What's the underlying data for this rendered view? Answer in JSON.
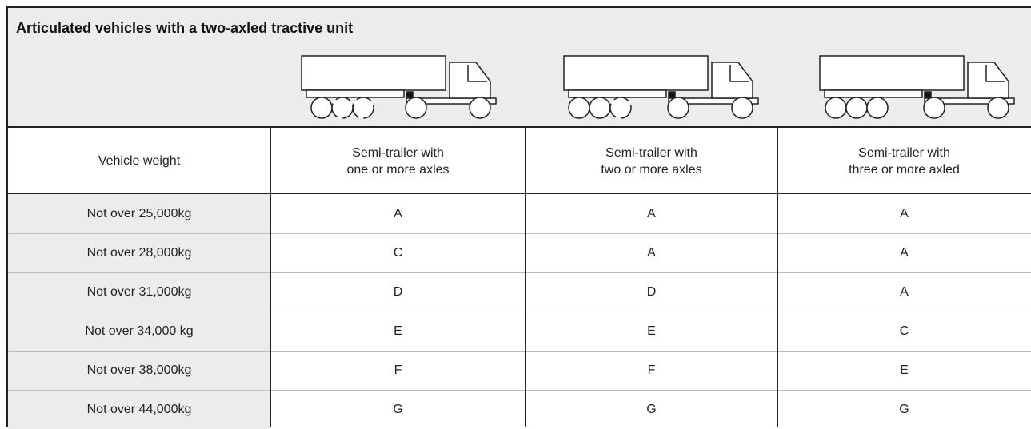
{
  "title": "Articulated vehicles with a two-axled tractive unit",
  "table": {
    "header": [
      [
        "Vehicle weight"
      ],
      [
        "Semi-trailer with",
        "one or more axles"
      ],
      [
        "Semi-trailer with",
        "two or more axles"
      ],
      [
        "Semi-trailer with",
        "three or more axled"
      ]
    ],
    "rows": [
      [
        "Not over 25,000kg",
        "A",
        "A",
        "A"
      ],
      [
        "Not over 28,000kg",
        "C",
        "A",
        "A"
      ],
      [
        "Not over 31,000kg",
        "D",
        "D",
        "A"
      ],
      [
        "Not over 34,000 kg",
        "E",
        "E",
        "C"
      ],
      [
        "Not over 38,000kg",
        "F",
        "F",
        "E"
      ],
      [
        "Not over 44,000kg",
        "G",
        "G",
        "G"
      ]
    ]
  }
}
